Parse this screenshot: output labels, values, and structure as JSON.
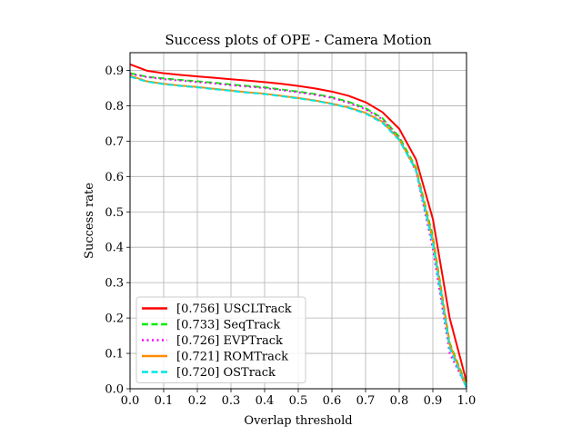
{
  "chart_data": {
    "type": "line",
    "title": "Success plots of OPE - Camera Motion",
    "xlabel": "Overlap threshold",
    "ylabel": "Success rate",
    "xlim": [
      0,
      1
    ],
    "ylim": [
      0,
      0.95
    ],
    "grid": true,
    "legend_position": "lower-left",
    "x_ticks": [
      "0.0",
      "0.1",
      "0.2",
      "0.3",
      "0.4",
      "0.5",
      "0.6",
      "0.7",
      "0.8",
      "0.9",
      "1.0"
    ],
    "y_ticks": [
      "0.0",
      "0.1",
      "0.2",
      "0.3",
      "0.4",
      "0.5",
      "0.6",
      "0.7",
      "0.8",
      "0.9"
    ],
    "x": [
      0,
      0.05,
      0.1,
      0.15,
      0.2,
      0.25,
      0.3,
      0.35,
      0.4,
      0.45,
      0.5,
      0.55,
      0.6,
      0.65,
      0.7,
      0.75,
      0.8,
      0.85,
      0.9,
      0.95,
      1.0
    ],
    "series": [
      {
        "name": "[0.756] USCLTrack",
        "color": "#ff0000",
        "style": "solid",
        "values": [
          0.917,
          0.899,
          0.892,
          0.887,
          0.883,
          0.879,
          0.875,
          0.871,
          0.867,
          0.862,
          0.856,
          0.849,
          0.84,
          0.828,
          0.81,
          0.782,
          0.735,
          0.648,
          0.48,
          0.2,
          0.02
        ]
      },
      {
        "name": "[0.733] SeqTrack",
        "color": "#00ee00",
        "style": "dashed",
        "values": [
          0.892,
          0.882,
          0.877,
          0.873,
          0.869,
          0.865,
          0.86,
          0.856,
          0.852,
          0.846,
          0.84,
          0.833,
          0.824,
          0.811,
          0.793,
          0.765,
          0.712,
          0.625,
          0.43,
          0.13,
          0.01
        ]
      },
      {
        "name": "[0.726] EVPTrack",
        "color": "#ff00ff",
        "style": "dotted",
        "values": [
          0.89,
          0.881,
          0.875,
          0.871,
          0.867,
          0.863,
          0.858,
          0.854,
          0.85,
          0.844,
          0.838,
          0.831,
          0.822,
          0.808,
          0.79,
          0.762,
          0.708,
          0.615,
          0.395,
          0.1,
          0.005
        ]
      },
      {
        "name": "[0.721] ROMTrack",
        "color": "#ff8c00",
        "style": "solid",
        "values": [
          0.885,
          0.869,
          0.862,
          0.857,
          0.853,
          0.848,
          0.843,
          0.838,
          0.834,
          0.828,
          0.822,
          0.815,
          0.806,
          0.795,
          0.78,
          0.755,
          0.705,
          0.62,
          0.42,
          0.125,
          0.005
        ]
      },
      {
        "name": "[0.720] OSTrack",
        "color": "#00e5e5",
        "style": "dashed",
        "values": [
          0.882,
          0.868,
          0.861,
          0.856,
          0.852,
          0.847,
          0.842,
          0.837,
          0.833,
          0.827,
          0.821,
          0.814,
          0.805,
          0.794,
          0.778,
          0.752,
          0.703,
          0.617,
          0.41,
          0.115,
          0.002
        ]
      }
    ]
  }
}
